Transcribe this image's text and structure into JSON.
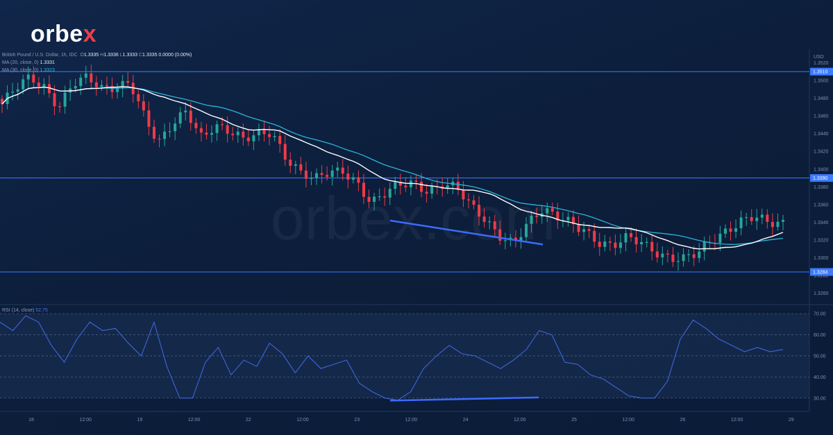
{
  "brand": {
    "name": "orbex",
    "name_main": "orbe",
    "name_x": "x",
    "watermark": "orbex.com"
  },
  "legend": {
    "symbol": "British Pound / U.S. Dollar, 1h, IDC",
    "o_label": "O",
    "o": "1.3335",
    "h_label": "H",
    "h": "1.3336",
    "l_label": "L",
    "l": "1.3333",
    "c_label": "C",
    "c": "1.3335",
    "change": "0.0000 (0.00%)",
    "ma20_label": "MA (20, close, 0)",
    "ma20": "1.3331",
    "ma30_label": "MA (30, close, 0)",
    "ma30": "1.3323",
    "rsi_label": "RSI (14, close)",
    "rsi": "52.75"
  },
  "colors": {
    "up": "#26a69a",
    "down": "#ef3b47",
    "ma20": "#ffffff",
    "ma30": "#2bb5d8",
    "level": "#3d7bff",
    "trendline": "#3d6bff"
  },
  "chart_data": [
    {
      "type": "candlestick",
      "currency_label": "USD",
      "price_ticks": [
        "1.3520",
        "1.3500",
        "1.3480",
        "1.3460",
        "1.3440",
        "1.3420",
        "1.3400",
        "1.3380",
        "1.3360",
        "1.3340",
        "1.3320",
        "1.3300",
        "1.3280",
        "1.3260"
      ],
      "ylim": [
        1.3248,
        1.3536
      ],
      "x_ticks": [
        "18",
        "12:00",
        "19",
        "12:00",
        "22",
        "12:00",
        "23",
        "12:00",
        "24",
        "12:00",
        "25",
        "12:00",
        "26",
        "12:00",
        "29"
      ],
      "levels": [
        {
          "value": 1.351,
          "label": "1.3510"
        },
        {
          "value": 1.339,
          "label": "1.3390"
        },
        {
          "value": 1.3284,
          "label": "1.3284"
        }
      ],
      "trendline": {
        "from_price": 1.3342,
        "to_price": 1.3315
      },
      "close_anchors": [
        1.347,
        1.349,
        1.3505,
        1.3495,
        1.3472,
        1.3495,
        1.35,
        1.349,
        1.3495,
        1.3502,
        1.346,
        1.3425,
        1.3448,
        1.3468,
        1.344,
        1.345,
        1.344,
        1.343,
        1.344,
        1.3445,
        1.3415,
        1.3395,
        1.3385,
        1.3395,
        1.34,
        1.3388,
        1.3362,
        1.337,
        1.338,
        1.3385,
        1.3378,
        1.3385,
        1.3378,
        1.3355,
        1.3342,
        1.3328,
        1.332,
        1.3338,
        1.335,
        1.3345,
        1.3342,
        1.3335,
        1.3318,
        1.331,
        1.332,
        1.3318,
        1.331,
        1.3302,
        1.3298,
        1.3302,
        1.3318,
        1.3332,
        1.3345,
        1.3348,
        1.3336,
        1.3335
      ]
    },
    {
      "type": "line",
      "name": "RSI (14, close)",
      "rsi_ticks": [
        "70.00",
        "60.00",
        "50.00",
        "40.00",
        "30.00"
      ],
      "ylim": [
        24,
        74
      ],
      "trendline": {
        "from_value": 28.8,
        "to_value": 30.3
      },
      "values": [
        66,
        62,
        69,
        66,
        55,
        47,
        58,
        66,
        62,
        63,
        56,
        50,
        66,
        45,
        30,
        30,
        47,
        54,
        41,
        48,
        45,
        56,
        51,
        42,
        50,
        44,
        46,
        48,
        37,
        33,
        30,
        29,
        33,
        44,
        50,
        55,
        51,
        50,
        47,
        44,
        48,
        53,
        62,
        60,
        47,
        46,
        41,
        39,
        35,
        31,
        30,
        30,
        38,
        58,
        67,
        63,
        58,
        55,
        52,
        54,
        52,
        53
      ]
    }
  ]
}
